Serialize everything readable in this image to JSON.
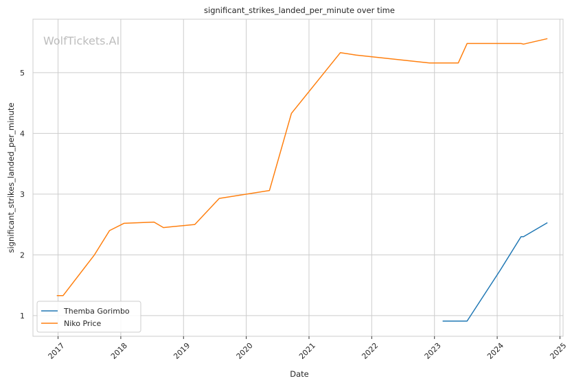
{
  "chart_data": {
    "type": "line",
    "title": "significant_strikes_landed_per_minute over time",
    "xlabel": "Date",
    "ylabel": "significant_strikes_landed_per_minute",
    "watermark": "WolfTickets.AI",
    "x_ticks": [
      "2017",
      "2018",
      "2019",
      "2020",
      "2021",
      "2022",
      "2023",
      "2024",
      "2025"
    ],
    "y_ticks": [
      "1",
      "2",
      "3",
      "4",
      "5"
    ],
    "xlim": [
      2016.6,
      2025.05
    ],
    "ylim": [
      0.66,
      5.88
    ],
    "grid": true,
    "legend_position": "lower-left",
    "series": [
      {
        "name": "Themba Gorimbo",
        "color": "#1f77b4",
        "x": [
          2023.13,
          2023.52,
          2024.05,
          2024.38,
          2024.42,
          2024.8
        ],
        "y": [
          0.91,
          0.91,
          1.75,
          2.3,
          2.3,
          2.53
        ]
      },
      {
        "name": "Niko Price",
        "color": "#ff7f0e",
        "x": [
          2016.98,
          2017.08,
          2017.58,
          2017.82,
          2018.05,
          2018.53,
          2018.68,
          2019.18,
          2019.57,
          2020.37,
          2020.72,
          2021.5,
          2021.75,
          2022.92,
          2023.38,
          2023.52,
          2024.38,
          2024.42,
          2024.8
        ],
        "y": [
          1.33,
          1.33,
          2.0,
          2.4,
          2.52,
          2.54,
          2.45,
          2.5,
          2.93,
          3.06,
          4.33,
          5.33,
          5.29,
          5.16,
          5.16,
          5.48,
          5.48,
          5.47,
          5.56
        ]
      }
    ]
  }
}
